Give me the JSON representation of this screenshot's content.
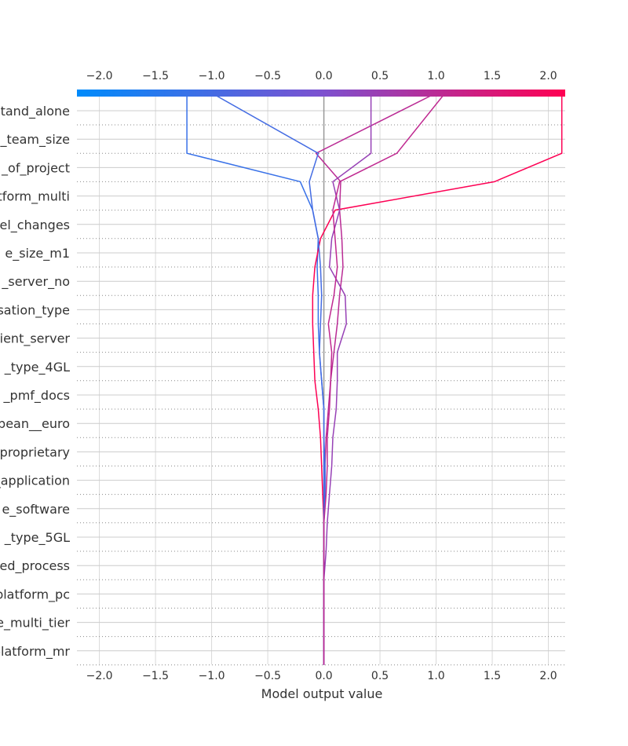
{
  "chart_data": {
    "type": "line",
    "title": "",
    "xlabel": "Model output value",
    "ylabel": "",
    "xlim": [
      -2.2,
      2.15
    ],
    "base_value": 0.0,
    "grid": true,
    "x_ticks": [
      "−2.0",
      "−1.5",
      "−1.0",
      "−0.5",
      "0.0",
      "0.5",
      "1.0",
      "1.5",
      "2.0"
    ],
    "x_tick_values": [
      -2.0,
      -1.5,
      -1.0,
      -0.5,
      0.0,
      0.5,
      1.0,
      1.5,
      2.0
    ],
    "colorbar": {
      "low_color": "#008bfb",
      "mid_color": "#7c52d0",
      "high_color": "#ff0052"
    },
    "features": [
      "tand_alone",
      "_team_size",
      "_of_project",
      "tform_multi",
      "el_changes",
      "e_size_m1",
      "_server_no",
      "sation_type",
      "ient_server",
      "_type_4GL",
      "_pmf_docs",
      "bean__euro",
      "_proprietary",
      "_application",
      "e_software",
      "_type_5GL",
      "ed_process",
      "platform_pc",
      "e_multi_tier",
      "platform_mr"
    ],
    "series": [
      {
        "values": [
          0,
          0,
          0,
          0,
          0,
          0,
          0,
          0.01,
          0.01,
          0.02,
          0.04,
          0.06,
          0.09,
          0.12,
          0.14,
          0.17,
          0.16,
          0.14,
          0.15,
          -0.07,
          1.0
        ]
      },
      {
        "values": [
          0,
          0,
          0,
          0,
          0,
          0,
          0,
          0.01,
          0.01,
          0.0,
          0.0,
          -0.02,
          -0.04,
          -0.05,
          -0.05,
          -0.06,
          -0.05,
          -0.1,
          -0.21,
          -1.22,
          -1.22
        ]
      },
      {
        "values": [
          0,
          0,
          0,
          0,
          0,
          0,
          0,
          -0.01,
          -0.02,
          -0.03,
          -0.05,
          -0.08,
          -0.09,
          -0.1,
          -0.1,
          -0.08,
          -0.03,
          0.1,
          1.52,
          2.12,
          2.12
        ]
      },
      {
        "values": [
          0,
          0,
          0,
          0,
          0,
          0.02,
          0.03,
          0.05,
          0.07,
          0.08,
          0.11,
          0.12,
          0.12,
          0.2,
          0.19,
          0.05,
          0.07,
          0.14,
          0.08,
          0.42,
          0.42
        ]
      },
      {
        "values": [
          0,
          0,
          0,
          0,
          0,
          0,
          0,
          0.0,
          0.0,
          0.0,
          0.0,
          -0.02,
          -0.04,
          -0.03,
          -0.02,
          -0.03,
          -0.05,
          -0.1,
          -0.13,
          -0.05,
          -1.0
        ]
      },
      {
        "values": [
          0,
          0,
          0,
          0,
          0,
          0,
          0,
          0.02,
          0.03,
          0.03,
          0.05,
          0.06,
          0.07,
          0.04,
          0.09,
          0.12,
          0.1,
          0.08,
          0.14,
          0.65,
          1.08
        ]
      }
    ]
  }
}
